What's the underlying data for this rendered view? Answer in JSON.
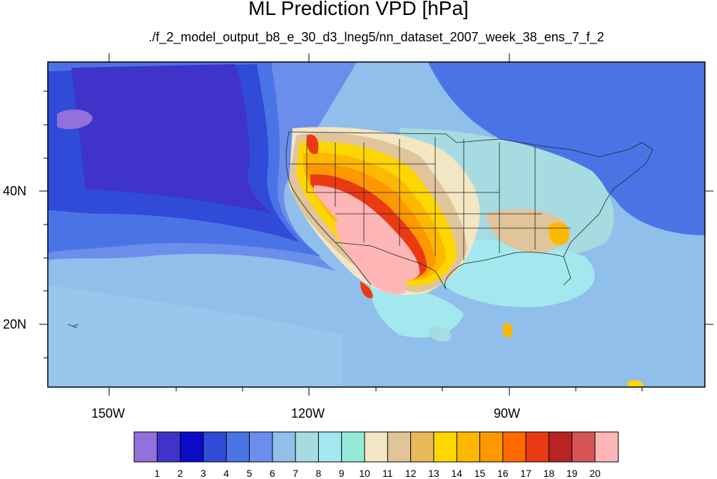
{
  "title": "ML Prediction VPD [hPa]",
  "subtitle": "./f_2_model_output_b8_e_30_d3_lneg5/nn_dataset_2007_week_38_ens_7_f_2",
  "map": {
    "lat_labels": [
      "40N",
      "20N"
    ],
    "lon_labels": [
      "150W",
      "120W",
      "90W"
    ]
  },
  "colorbar": {
    "labels": [
      "1",
      "2",
      "3",
      "4",
      "5",
      "6",
      "7",
      "8",
      "9",
      "10",
      "11",
      "12",
      "13",
      "14",
      "15",
      "16",
      "17",
      "18",
      "19",
      "20"
    ],
    "colors": [
      "#9370db",
      "#3f33c9",
      "#0a0ac8",
      "#2f4bd8",
      "#4a74e6",
      "#6b8eec",
      "#8fbfea",
      "#a6dbe2",
      "#a3e8ee",
      "#94ead9",
      "#f3e6c2",
      "#e0c49a",
      "#e8b95a",
      "#ffd700",
      "#ffb800",
      "#ff9800",
      "#ff6a00",
      "#ea3a14",
      "#b82424",
      "#d65454",
      "#ffb6b6"
    ]
  },
  "legend": {
    "units": "hPa"
  }
}
